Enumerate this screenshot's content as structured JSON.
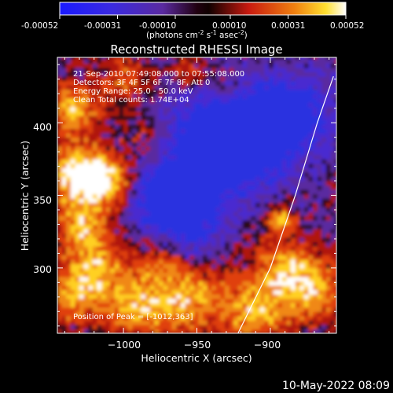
{
  "colorbar": {
    "ticks": [
      "-0.00052",
      "-0.00031",
      "-0.00010",
      "0.00010",
      "0.00031",
      "0.00052"
    ],
    "unit_label": "(photons cm",
    "unit_sup1": "-2",
    "unit_mid1": " s",
    "unit_sup2": "-1",
    "unit_mid2": " asec",
    "unit_sup3": "-2",
    "unit_end": ")"
  },
  "info": {
    "line1": "21-Sep-2010 07:49:08.000 to 07:55:08.000",
    "line2": "Detectors: 3F 4F 5F 6F 7F 8F, Att 0",
    "line3": "Energy Range: 25.0 - 50.0 keV",
    "line4": "Clean     Total counts: 1.74E+04",
    "peak": "Position of Peak = [-1012,363]"
  },
  "timestamp": "10-May-2022 08:09",
  "colors": {
    "background": "#000000",
    "blue": "#2b32e0",
    "purple": "#5a2aa0",
    "dark": "#2a0a18",
    "red": "#c81a10",
    "orange": "#f07010",
    "yellow": "#ffd820",
    "white": "#ffffff"
  },
  "chart_data": {
    "type": "heatmap",
    "title": "Reconstructed RHESSI Image",
    "xlabel": "Heliocentric X (arcsec)",
    "ylabel": "Heliocentric Y (arcsec)",
    "xlim": [
      -1045,
      -855
    ],
    "ylim": [
      255,
      445
    ],
    "xticks": [
      -1000,
      -950,
      -900
    ],
    "xtick_labels": [
      "−1000",
      "−950",
      "−900"
    ],
    "yticks": [
      300,
      350,
      400
    ],
    "ytick_labels": [
      "300",
      "350",
      "400"
    ],
    "colorbar_range": [
      -0.00052,
      0.00052
    ],
    "colorbar_ticks": [
      -0.00052,
      -0.00031,
      -0.0001,
      0.0001,
      0.00031,
      0.00052
    ],
    "limb_points": [
      [
        -922,
        255
      ],
      [
        -900,
        300
      ],
      [
        -883,
        350
      ],
      [
        -868,
        400
      ],
      [
        -857,
        432
      ]
    ],
    "peak": [
      -1012,
      363
    ]
  }
}
